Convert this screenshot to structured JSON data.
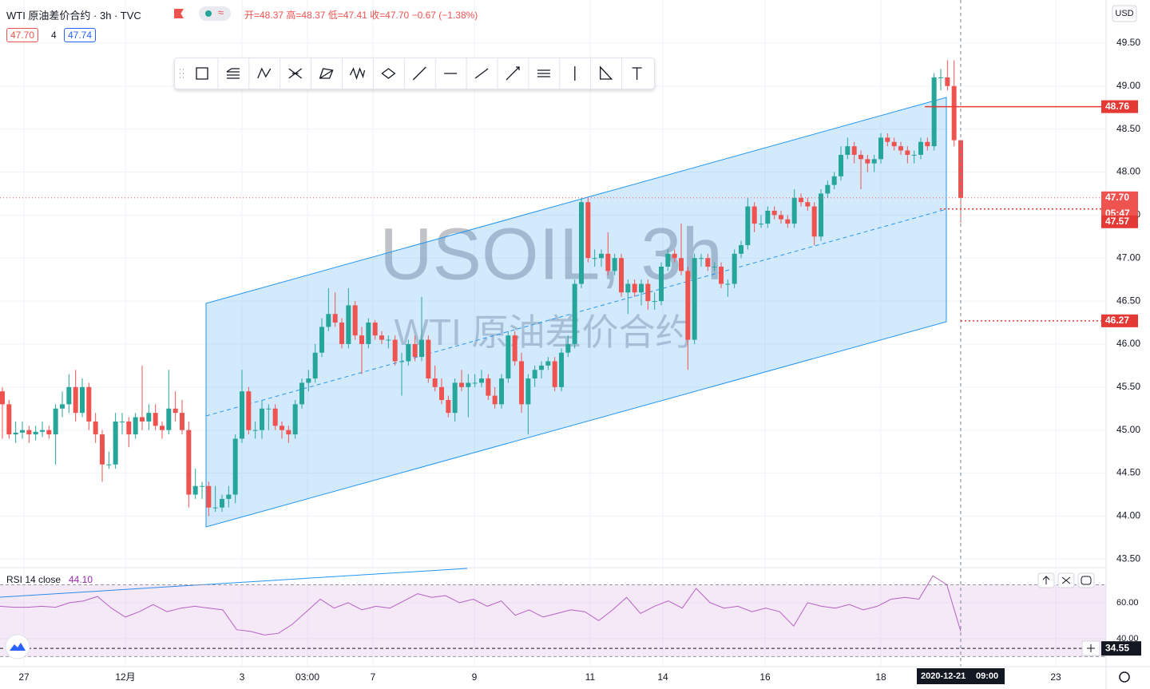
{
  "header": {
    "symbol": "WTI 原油差价合约 · 3h · TVC",
    "open": "开=48.37",
    "high": "高=48.37",
    "low": "低=47.41",
    "close": "收=47.70",
    "change": "−0.67 (−1.38%)",
    "bid": "47.70",
    "spread": "4",
    "ask": "47.74"
  },
  "watermark": {
    "title": "USOIL, 3h",
    "subtitle": "WTI 原油差价合约"
  },
  "chart_data": [
    {
      "type": "candlestick",
      "currency": "USD",
      "up_color": "#26a69a",
      "down_color": "#ef5350",
      "ylim": [
        43.41,
        50.0
      ],
      "yticks": [
        {
          "value": 43.5,
          "label": "43.50"
        },
        {
          "value": 44,
          "label": "44.00"
        },
        {
          "value": 44.5,
          "label": "44.50"
        },
        {
          "value": 45,
          "label": "45.00"
        },
        {
          "value": 45.5,
          "label": "45.50"
        },
        {
          "value": 46,
          "label": "46.00"
        },
        {
          "value": 46.5,
          "label": "46.50"
        },
        {
          "value": 47,
          "label": "47.00"
        },
        {
          "value": 47.5,
          "label": "47.50"
        },
        {
          "value": 48,
          "label": "48.00"
        },
        {
          "value": 48.5,
          "label": "48.50"
        },
        {
          "value": 49,
          "label": "49.00"
        },
        {
          "value": 49.5,
          "label": "49.50"
        }
      ],
      "price_lines": [
        {
          "value": 48.76,
          "label": "48.76"
        },
        {
          "value": 47.7,
          "label": "47.70"
        },
        {
          "value": 47.57,
          "label": "47.57"
        },
        {
          "value": 46.27,
          "label": "46.27"
        }
      ],
      "countdown": "05:47",
      "xtick_labels": [
        "27",
        "12月",
        "3",
        "03:00",
        "7",
        "9",
        "11",
        "14",
        "16",
        "18",
        "23"
      ],
      "crosshair_date": "2020-12-21",
      "crosshair_time": "09:00",
      "candles": [
        [
          45.45,
          45.5,
          44.9,
          45.3
        ],
        [
          45.3,
          45.35,
          44.9,
          44.95
        ],
        [
          44.95,
          45.1,
          44.85,
          44.97
        ],
        [
          44.97,
          45.1,
          44.9,
          45.0
        ],
        [
          45.0,
          45.05,
          44.85,
          44.95
        ],
        [
          44.95,
          45.05,
          44.88,
          44.98
        ],
        [
          44.98,
          45.1,
          44.92,
          45.0
        ],
        [
          45.0,
          45.05,
          44.9,
          44.95
        ],
        [
          44.95,
          45.3,
          44.6,
          45.25
        ],
        [
          45.25,
          45.45,
          45.15,
          45.3
        ],
        [
          45.3,
          45.65,
          45.2,
          45.5
        ],
        [
          45.5,
          45.7,
          45.1,
          45.2
        ],
        [
          45.2,
          45.6,
          45.15,
          45.5
        ],
        [
          45.5,
          45.55,
          45.0,
          45.1
        ],
        [
          45.1,
          45.2,
          44.85,
          44.95
        ],
        [
          44.95,
          45.0,
          44.4,
          44.6
        ],
        [
          44.6,
          44.75,
          44.55,
          44.6
        ],
        [
          44.6,
          45.2,
          44.55,
          45.1
        ],
        [
          45.1,
          45.2,
          44.95,
          45.1
        ],
        [
          45.1,
          45.15,
          44.8,
          44.95
        ],
        [
          44.95,
          45.2,
          44.9,
          45.15
        ],
        [
          45.15,
          45.75,
          45.0,
          45.1
        ],
        [
          45.1,
          45.3,
          45.0,
          45.2
        ],
        [
          45.2,
          45.3,
          45.0,
          45.05
        ],
        [
          45.05,
          45.1,
          44.9,
          45.0
        ],
        [
          45.0,
          45.7,
          44.95,
          45.25
        ],
        [
          45.25,
          45.45,
          45.1,
          45.2
        ],
        [
          45.2,
          45.35,
          44.95,
          45.0
        ],
        [
          45.0,
          45.1,
          44.1,
          44.25
        ],
        [
          44.25,
          44.55,
          44.2,
          44.35
        ],
        [
          44.35,
          44.4,
          44.2,
          44.35
        ],
        [
          44.35,
          44.4,
          44.0,
          44.1
        ],
        [
          44.1,
          44.35,
          44.05,
          44.1
        ],
        [
          44.1,
          44.25,
          44.05,
          44.2
        ],
        [
          44.2,
          44.35,
          44.1,
          44.25
        ],
        [
          44.25,
          44.95,
          44.15,
          44.9
        ],
        [
          44.9,
          45.7,
          44.85,
          45.45
        ],
        [
          45.45,
          45.5,
          44.95,
          45.0
        ],
        [
          45.0,
          45.1,
          44.9,
          45.0
        ],
        [
          45.0,
          45.35,
          44.9,
          45.25
        ],
        [
          45.25,
          45.3,
          45.0,
          45.25
        ],
        [
          45.25,
          45.3,
          45.0,
          45.05
        ],
        [
          45.05,
          45.1,
          44.9,
          45.0
        ],
        [
          45.0,
          45.05,
          44.85,
          44.95
        ],
        [
          44.95,
          45.35,
          44.9,
          45.3
        ],
        [
          45.3,
          45.6,
          45.25,
          45.55
        ],
        [
          45.55,
          45.7,
          45.45,
          45.6
        ],
        [
          45.6,
          46.0,
          45.55,
          45.9
        ],
        [
          45.9,
          46.3,
          45.85,
          46.2
        ],
        [
          46.2,
          46.65,
          46.15,
          46.35
        ],
        [
          46.35,
          46.6,
          46.2,
          46.25
        ],
        [
          46.25,
          46.3,
          45.95,
          46.0
        ],
        [
          46.0,
          46.65,
          45.95,
          46.45
        ],
        [
          46.45,
          46.5,
          46.05,
          46.1
        ],
        [
          46.1,
          46.2,
          45.65,
          46.0
        ],
        [
          46.0,
          46.3,
          45.95,
          46.25
        ],
        [
          46.25,
          46.28,
          46.05,
          46.1
        ],
        [
          46.1,
          46.15,
          46.0,
          46.05
        ],
        [
          46.05,
          46.1,
          45.95,
          46.05
        ],
        [
          46.05,
          46.1,
          45.75,
          45.8
        ],
        [
          45.8,
          45.9,
          45.4,
          45.8
        ],
        [
          45.8,
          46.05,
          45.75,
          46.0
        ],
        [
          46.0,
          46.1,
          45.8,
          45.85
        ],
        [
          45.85,
          46.55,
          45.8,
          46.05
        ],
        [
          46.05,
          46.1,
          45.55,
          45.6
        ],
        [
          45.6,
          45.75,
          45.45,
          45.5
        ],
        [
          45.5,
          45.6,
          45.3,
          45.35
        ],
        [
          45.35,
          45.4,
          45.15,
          45.2
        ],
        [
          45.2,
          45.6,
          45.1,
          45.55
        ],
        [
          45.55,
          45.7,
          45.45,
          45.5
        ],
        [
          45.5,
          45.65,
          45.15,
          45.55
        ],
        [
          45.55,
          45.65,
          45.5,
          45.55
        ],
        [
          45.55,
          45.7,
          45.5,
          45.6
        ],
        [
          45.6,
          45.65,
          45.35,
          45.4
        ],
        [
          45.4,
          45.5,
          45.25,
          45.3
        ],
        [
          45.3,
          45.65,
          45.25,
          45.6
        ],
        [
          45.6,
          46.15,
          45.55,
          46.1
        ],
        [
          46.1,
          46.15,
          45.75,
          45.8
        ],
        [
          45.8,
          45.9,
          45.2,
          45.3
        ],
        [
          45.3,
          45.65,
          44.95,
          45.6
        ],
        [
          45.6,
          45.75,
          45.5,
          45.7
        ],
        [
          45.7,
          45.8,
          45.6,
          45.75
        ],
        [
          45.75,
          45.85,
          45.7,
          45.8
        ],
        [
          45.8,
          45.85,
          45.45,
          45.5
        ],
        [
          45.5,
          45.95,
          45.45,
          45.9
        ],
        [
          45.9,
          46.1,
          45.85,
          46.0
        ],
        [
          46.0,
          46.75,
          45.95,
          46.7
        ],
        [
          46.7,
          47.7,
          46.65,
          47.65
        ],
        [
          47.65,
          47.7,
          46.95,
          47.0
        ],
        [
          47.0,
          47.1,
          46.9,
          47.0
        ],
        [
          47.0,
          47.1,
          46.9,
          47.05
        ],
        [
          47.05,
          47.3,
          46.8,
          46.85
        ],
        [
          46.85,
          47.05,
          46.8,
          47.0
        ],
        [
          47.0,
          47.05,
          46.55,
          46.6
        ],
        [
          46.6,
          46.75,
          46.35,
          46.7
        ],
        [
          46.7,
          46.75,
          46.55,
          46.6
        ],
        [
          46.6,
          46.75,
          46.45,
          46.7
        ],
        [
          46.7,
          46.75,
          46.4,
          46.5
        ],
        [
          46.5,
          46.6,
          46.4,
          46.5
        ],
        [
          46.5,
          46.95,
          46.45,
          46.9
        ],
        [
          46.9,
          47.1,
          46.85,
          47.05
        ],
        [
          47.05,
          47.1,
          46.95,
          47.0
        ],
        [
          47.0,
          47.4,
          46.8,
          46.85
        ],
        [
          46.85,
          46.9,
          45.7,
          46.05
        ],
        [
          46.05,
          47.05,
          46.0,
          47.0
        ],
        [
          47.0,
          47.05,
          46.9,
          47.0
        ],
        [
          47.0,
          47.05,
          46.85,
          46.9
        ],
        [
          46.9,
          46.95,
          46.85,
          46.9
        ],
        [
          46.9,
          46.95,
          46.65,
          46.7
        ],
        [
          46.7,
          46.75,
          46.55,
          46.7
        ],
        [
          46.7,
          47.1,
          46.65,
          47.05
        ],
        [
          47.05,
          47.2,
          47.0,
          47.15
        ],
        [
          47.15,
          47.7,
          47.1,
          47.6
        ],
        [
          47.6,
          47.65,
          47.3,
          47.4
        ],
        [
          47.4,
          47.5,
          47.35,
          47.4
        ],
        [
          47.4,
          47.6,
          47.35,
          47.55
        ],
        [
          47.55,
          47.6,
          47.45,
          47.5
        ],
        [
          47.5,
          47.55,
          47.4,
          47.45
        ],
        [
          47.45,
          47.5,
          47.35,
          47.4
        ],
        [
          47.4,
          47.8,
          47.35,
          47.7
        ],
        [
          47.7,
          47.75,
          47.6,
          47.65
        ],
        [
          47.65,
          47.7,
          47.55,
          47.6
        ],
        [
          47.6,
          47.65,
          47.15,
          47.25
        ],
        [
          47.25,
          47.8,
          47.2,
          47.75
        ],
        [
          47.75,
          47.9,
          47.7,
          47.85
        ],
        [
          47.85,
          48.0,
          47.8,
          47.95
        ],
        [
          47.95,
          48.3,
          47.9,
          48.2
        ],
        [
          48.2,
          48.4,
          48.15,
          48.3
        ],
        [
          48.3,
          48.35,
          48.1,
          48.2
        ],
        [
          48.2,
          48.25,
          47.8,
          48.15
        ],
        [
          48.15,
          48.2,
          48.0,
          48.1
        ],
        [
          48.1,
          48.2,
          48.0,
          48.15
        ],
        [
          48.15,
          48.45,
          48.1,
          48.4
        ],
        [
          48.4,
          48.45,
          48.3,
          48.35
        ],
        [
          48.35,
          48.4,
          48.25,
          48.3
        ],
        [
          48.3,
          48.35,
          48.2,
          48.25
        ],
        [
          48.25,
          48.3,
          48.1,
          48.2
        ],
        [
          48.2,
          48.25,
          48.1,
          48.2
        ],
        [
          48.2,
          48.4,
          48.15,
          48.35
        ],
        [
          48.35,
          48.4,
          48.25,
          48.3
        ],
        [
          48.3,
          49.15,
          48.25,
          49.1
        ],
        [
          49.1,
          49.2,
          48.95,
          49.1
        ],
        [
          49.1,
          49.3,
          48.95,
          49.0
        ],
        [
          49.0,
          49.3,
          48.3,
          48.37
        ],
        [
          48.37,
          48.37,
          47.41,
          47.7
        ]
      ]
    },
    {
      "type": "line",
      "name": "RSI 14 close",
      "color": "#9c27b0",
      "last": 44.1,
      "last_label": "44.10",
      "ylim": [
        24.4,
        79.1
      ],
      "yticks": [
        {
          "value": 60,
          "label": "60.00"
        },
        {
          "value": 40,
          "label": "40.00"
        }
      ],
      "marker": {
        "value": 34.55,
        "label": "34.55"
      },
      "values": [
        58,
        57.5,
        57.5,
        58,
        57.5,
        60,
        61,
        63.5,
        57,
        52,
        55,
        59,
        55,
        57,
        58,
        57,
        56,
        45,
        44,
        42,
        43,
        48,
        55,
        62,
        57,
        60,
        56,
        58,
        57,
        61,
        65,
        63,
        64,
        60,
        62,
        58,
        61,
        53,
        56,
        52,
        54,
        56,
        55,
        50,
        56,
        63,
        54,
        58,
        61,
        57,
        68,
        60,
        57,
        58,
        55,
        57,
        55,
        47,
        60,
        58,
        57,
        59,
        56,
        58,
        62,
        63,
        62,
        75,
        70,
        44.1
      ]
    }
  ]
}
